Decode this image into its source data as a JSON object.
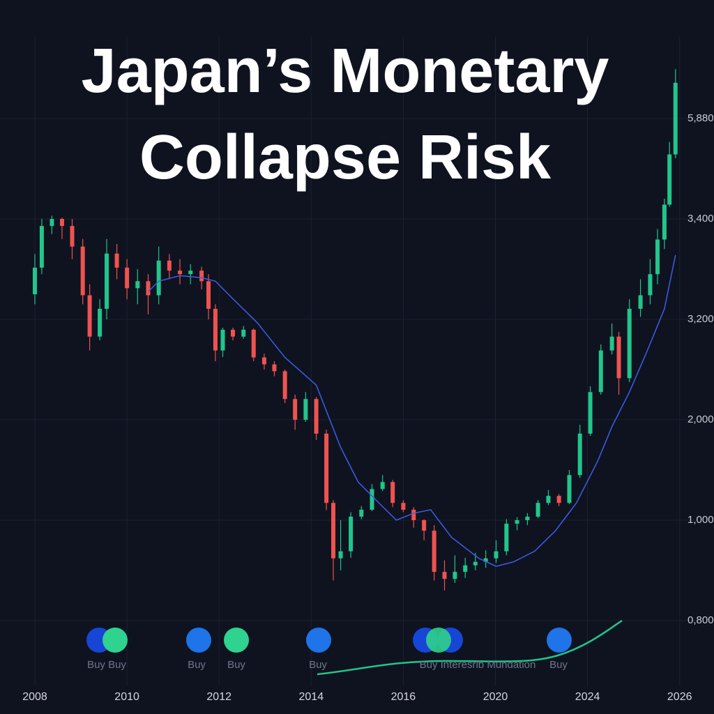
{
  "chart_data": {
    "type": "candlestick",
    "title": "Japan’s Monetary Collapse Risk",
    "x": [
      2008.0,
      2008.15,
      2008.37,
      2008.59,
      2008.81,
      2009.04,
      2009.19,
      2009.41,
      2009.56,
      2009.78,
      2010.0,
      2010.23,
      2010.46,
      2010.69,
      2010.92,
      2011.15,
      2011.38,
      2011.62,
      2011.77,
      2011.92,
      2012.08,
      2012.3,
      2012.53,
      2012.75,
      2012.98,
      2013.2,
      2013.43,
      2013.65,
      2013.88,
      2014.11,
      2014.33,
      2014.48,
      2014.64,
      2014.86,
      2015.09,
      2015.32,
      2015.55,
      2015.77,
      2016.0,
      2016.45,
      2016.9,
      2017.34,
      2017.79,
      2018.24,
      2018.69,
      2019.13,
      2019.58,
      2020.03,
      2020.48,
      2020.94,
      2021.39,
      2021.85,
      2022.3,
      2022.76,
      2023.21,
      2023.67,
      2024.06,
      2024.29,
      2024.53,
      2024.68,
      2024.91,
      2025.15,
      2025.36,
      2025.52,
      2025.67,
      2025.78,
      2025.91
    ],
    "open": [
      3250,
      3303,
      3386,
      3400,
      3386,
      3345,
      3248,
      2994,
      3221,
      3331,
      3303,
      3262,
      3276,
      3248,
      3317,
      3297,
      3290,
      3297,
      3276,
      3221,
      2828,
      3076,
      2994,
      3076,
      2745,
      2662,
      2580,
      2248,
      2000,
      2248,
      1862,
      1172,
      924,
      938,
      1035,
      1104,
      1310,
      1380,
      1172,
      1104,
      1000,
      979,
      897,
      883,
      897,
      910,
      917,
      924,
      938,
      993,
      1000,
      1035,
      1172,
      1242,
      1172,
      1449,
      1862,
      2331,
      2828,
      2994,
      2497,
      3221,
      3248,
      3290,
      3359,
      3754,
      4993
    ],
    "high": [
      3330,
      3400,
      3480,
      3430,
      3400,
      3360,
      3270,
      3240,
      3360,
      3350,
      3320,
      3300,
      3290,
      3345,
      3330,
      3320,
      3310,
      3305,
      3290,
      3230,
      3100,
      3100,
      3120,
      3090,
      2790,
      2700,
      2600,
      2300,
      2330,
      2270,
      1900,
      1200,
      1000,
      1080,
      1140,
      1360,
      1450,
      1400,
      1200,
      1130,
      1010,
      990,
      920,
      930,
      925,
      935,
      940,
      960,
      1010,
      1030,
      1070,
      1200,
      1300,
      1260,
      1500,
      1950,
      2400,
      2900,
      3150,
      3050,
      3240,
      3280,
      3320,
      3380,
      3900,
      5300,
      7100
    ],
    "low": [
      3230,
      3290,
      3370,
      3360,
      3320,
      3230,
      2830,
      2950,
      3200,
      3280,
      3240,
      3230,
      3210,
      3230,
      3280,
      3270,
      3270,
      3260,
      3200,
      2700,
      2750,
      2950,
      2970,
      2700,
      2600,
      2520,
      2200,
      1900,
      1980,
      1800,
      1100,
      880,
      900,
      925,
      1010,
      1090,
      1290,
      1130,
      1080,
      985,
      960,
      880,
      860,
      875,
      885,
      900,
      905,
      915,
      930,
      980,
      990,
      1020,
      1150,
      1140,
      1160,
      1420,
      1840,
      2300,
      2780,
      2300,
      2450,
      3205,
      3230,
      3270,
      3340,
      3700,
      4900
    ],
    "close": [
      3303,
      3386,
      3400,
      3386,
      3345,
      3248,
      2994,
      3221,
      3331,
      3303,
      3262,
      3276,
      3248,
      3317,
      3297,
      3290,
      3297,
      3276,
      3221,
      2828,
      3076,
      2994,
      3076,
      2745,
      2662,
      2580,
      2248,
      2000,
      2248,
      1862,
      1172,
      924,
      938,
      1035,
      1104,
      1310,
      1380,
      1172,
      1104,
      1000,
      979,
      897,
      883,
      897,
      910,
      917,
      924,
      938,
      993,
      1000,
      1035,
      1172,
      1242,
      1172,
      1449,
      1862,
      2331,
      2828,
      2994,
      2497,
      3221,
      3248,
      3290,
      3359,
      3754,
      4993,
      6763
    ],
    "up_color": "#22c58b",
    "down_color": "#ef5350",
    "overlays": [
      {
        "type": "line",
        "color": "#3d5ee8",
        "x": [
          2010.46,
          2010.69,
          2011.15,
          2011.62,
          2011.92,
          2012.3,
          2012.83,
          2013.43,
          2014.11,
          2014.64,
          2015.02,
          2015.47,
          2015.85,
          2016.45,
          2017.19,
          2018.09,
          2019.28,
          2020.03,
          2020.79,
          2021.7,
          2022.61,
          2023.52,
          2024.22,
          2024.53,
          2024.91,
          2025.3,
          2025.67,
          2025.91
        ],
        "values": [
          3255,
          3276,
          3287,
          3283,
          3276,
          3241,
          3159,
          2745,
          2414,
          1725,
          1380,
          1172,
          1000,
          1069,
          1104,
          966,
          924,
          908,
          917,
          938,
          979,
          1172,
          1587,
          1931,
          2331,
          2828,
          3221,
          3328
        ]
      }
    ],
    "xlim": [
      2007.25,
      2026.4
    ],
    "xticks": [
      2008,
      2010,
      2012,
      2014,
      2016,
      2020,
      2024,
      2026
    ],
    "ylim": [
      670,
      7900
    ],
    "yticks": [
      {
        "value": 800,
        "label": "0,800"
      },
      {
        "value": 1000,
        "label": "1,000"
      },
      {
        "value": 2000,
        "label": "2,000"
      },
      {
        "value": 3200,
        "label": "3,200"
      },
      {
        "value": 3400,
        "label": "3,400"
      },
      {
        "value": 5880,
        "label": "5,880"
      }
    ],
    "grid": true,
    "annotations": [
      "Buy Buy",
      "Buy",
      "Buy",
      "Buy",
      "Buy Interesrib Muhdation",
      "Buy"
    ]
  }
}
